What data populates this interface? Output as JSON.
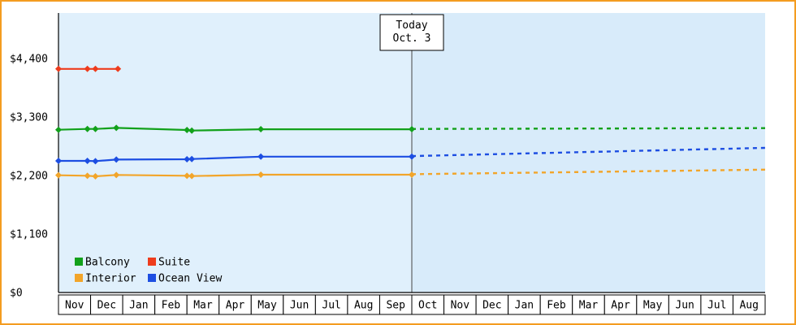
{
  "chart_data": {
    "type": "line",
    "title": "",
    "x_axis": {
      "months": [
        "Nov",
        "Dec",
        "Jan",
        "Feb",
        "Mar",
        "Apr",
        "May",
        "Jun",
        "Jul",
        "Aug",
        "Sep",
        "Oct",
        "Nov",
        "Dec",
        "Jan",
        "Feb",
        "Mar",
        "Apr",
        "May",
        "Jun",
        "Jul",
        "Aug"
      ]
    },
    "y_axis": {
      "ticks": [
        {
          "value": 0,
          "label": "$0"
        },
        {
          "value": 1100,
          "label": "$1,100"
        },
        {
          "value": 2200,
          "label": "$2,200"
        },
        {
          "value": 3300,
          "label": "$3,300"
        },
        {
          "value": 4400,
          "label": "$4,400"
        }
      ],
      "range": [
        0,
        4400
      ]
    },
    "today": {
      "lines": [
        "Today",
        "Oct. 3"
      ],
      "month_position": 11
    },
    "series": [
      {
        "name": "Suite",
        "color": "#ee3c1d",
        "observed": [
          [
            0,
            4205
          ],
          [
            0.9,
            4205
          ],
          [
            1.15,
            4205
          ],
          [
            1.85,
            4205
          ]
        ],
        "predicted": []
      },
      {
        "name": "Balcony",
        "color": "#12a11b",
        "observed": [
          [
            0,
            3060
          ],
          [
            0.9,
            3075
          ],
          [
            1.15,
            3075
          ],
          [
            1.8,
            3095
          ],
          [
            4.0,
            3055
          ],
          [
            4.15,
            3045
          ],
          [
            6.3,
            3070
          ],
          [
            11,
            3070
          ]
        ],
        "predicted": [
          [
            11,
            3075
          ],
          [
            22,
            3090
          ]
        ]
      },
      {
        "name": "Ocean View",
        "color": "#1d4ee2",
        "observed": [
          [
            0,
            2475
          ],
          [
            0.9,
            2475
          ],
          [
            1.15,
            2470
          ],
          [
            1.8,
            2500
          ],
          [
            4.0,
            2505
          ],
          [
            4.15,
            2510
          ],
          [
            6.3,
            2555
          ],
          [
            11,
            2555
          ]
        ],
        "predicted": [
          [
            11,
            2565
          ],
          [
            22,
            2720
          ]
        ]
      },
      {
        "name": "Interior",
        "color": "#f2a52a",
        "observed": [
          [
            0,
            2205
          ],
          [
            0.9,
            2195
          ],
          [
            1.15,
            2185
          ],
          [
            1.8,
            2210
          ],
          [
            4.0,
            2195
          ],
          [
            4.15,
            2190
          ],
          [
            6.3,
            2215
          ],
          [
            11,
            2215
          ]
        ],
        "predicted": [
          [
            11,
            2225
          ],
          [
            22,
            2310
          ]
        ]
      }
    ],
    "legend": {
      "rows": [
        [
          "Balcony",
          "Suite"
        ],
        [
          "Interior",
          "Ocean View"
        ]
      ],
      "position": "bottom-left"
    },
    "colors": {
      "frame_border": "#f49c20",
      "plot_bg_past": "#e0f0fc",
      "plot_bg_future": "#d8ebfa",
      "margin_bg": "#ffffff",
      "axis": "#000000",
      "today_line": "#444444",
      "box_fill": "#ffffff",
      "box_border": "#000000",
      "text": "#000000"
    },
    "grid": false
  }
}
